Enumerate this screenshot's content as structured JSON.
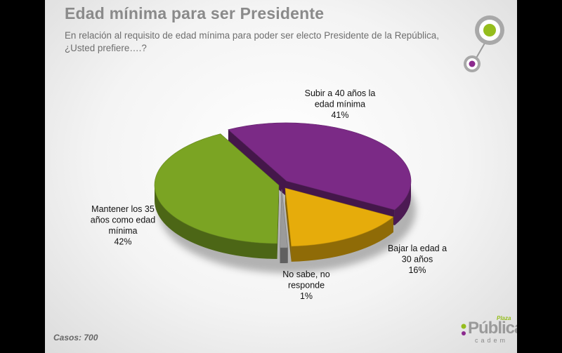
{
  "title": "Edad mínima para ser Presidente",
  "subtitle": "En relación al requisito de edad mínima para poder ser electo Presidente de la República, ¿Usted prefiere….?",
  "footer": {
    "casos": "Casos: 700"
  },
  "brand": {
    "top": "Plaza",
    "name": "Pública",
    "sub": "cadem"
  },
  "colors": {
    "purple": "#7b2a86",
    "yellow": "#e6ac0b",
    "gray": "#9b9b9b",
    "green": "#7ba423",
    "logo_green": "#95bd1d",
    "logo_purple": "#8c2a8e"
  },
  "chart_data": {
    "type": "pie",
    "title": "",
    "slices": [
      {
        "label_lines": [
          "Subir a 40 años la",
          "edad mínima"
        ],
        "value": 41,
        "value_label": "41%",
        "color": "#7b2a86"
      },
      {
        "label_lines": [
          "Bajar la edad a",
          "30 años"
        ],
        "value": 16,
        "value_label": "16%",
        "color": "#e6ac0b"
      },
      {
        "label_lines": [
          "No sabe, no",
          "responde"
        ],
        "value": 1,
        "value_label": "1%",
        "color": "#9b9b9b"
      },
      {
        "label_lines": [
          "Mantener los 35",
          "años como edad",
          "mínima"
        ],
        "value": 42,
        "value_label": "42%",
        "color": "#7ba423"
      }
    ]
  }
}
